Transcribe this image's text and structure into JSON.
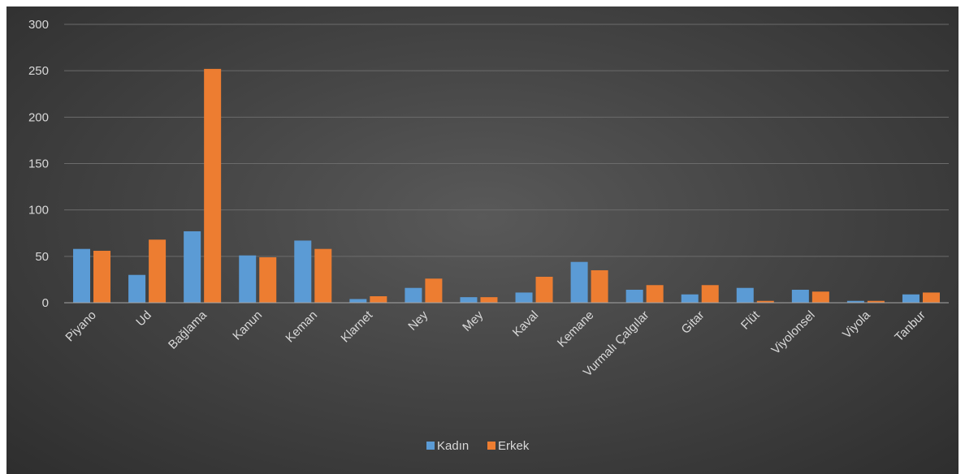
{
  "chart_data": {
    "type": "bar",
    "categories": [
      "Piyano",
      "Ud",
      "Bağlama",
      "Kanun",
      "Keman",
      "Klarnet",
      "Ney",
      "Mey",
      "Kaval",
      "Kemane",
      "Vurmalı Çalgılar",
      "Gitar",
      "Flüt",
      "Viyolonsel",
      "Viyola",
      "Tanbur"
    ],
    "series": [
      {
        "name": "Kadın",
        "color": "#5b9bd5",
        "values": [
          58,
          30,
          77,
          51,
          67,
          4,
          16,
          6,
          11,
          44,
          14,
          9,
          16,
          14,
          2,
          9
        ]
      },
      {
        "name": "Erkek",
        "color": "#ed7d31",
        "values": [
          56,
          68,
          252,
          49,
          58,
          7,
          26,
          6,
          28,
          35,
          19,
          19,
          2,
          12,
          2,
          11
        ]
      }
    ],
    "yticks": [
      0,
      50,
      100,
      150,
      200,
      250,
      300
    ],
    "ylim": [
      0,
      300
    ],
    "grid": true,
    "legend_position": "bottom"
  }
}
